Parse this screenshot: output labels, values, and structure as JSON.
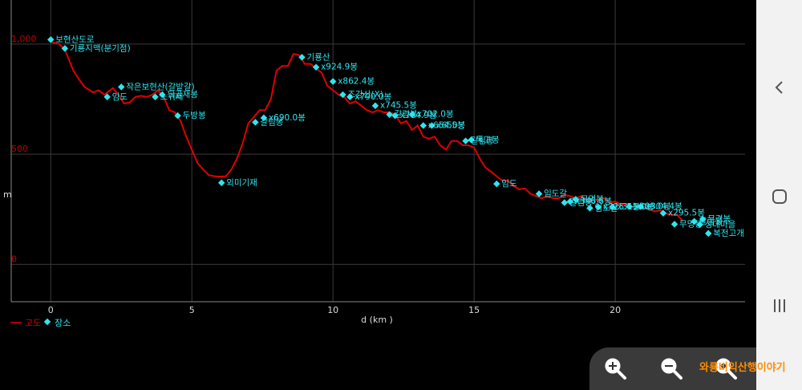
{
  "chart_data": {
    "type": "line",
    "xlabel": "d (km )",
    "ylabel": "m",
    "xlim": [
      -1.4,
      24.6
    ],
    "ylim": [
      -170,
      1200
    ],
    "x_ticks": [
      0,
      5,
      10,
      15,
      20
    ],
    "y_ticks": [
      0,
      500,
      1000
    ],
    "y_tick_labels": [
      "0",
      "500",
      "1,000"
    ],
    "grid": true,
    "legend": {
      "placement": "bottom-left",
      "items": [
        "고도",
        "장소"
      ]
    },
    "colors": {
      "elevation": "#e00000",
      "places": "#2ee6f0",
      "grid": "#3a3a3a"
    },
    "series": [
      {
        "name": "고도",
        "x": [
          0,
          0.3,
          0.5,
          0.8,
          1.0,
          1.2,
          1.5,
          1.7,
          1.9,
          2.0,
          2.2,
          2.4,
          2.6,
          2.8,
          3.0,
          3.2,
          3.4,
          3.6,
          3.8,
          4.0,
          4.2,
          4.4,
          4.6,
          4.8,
          5.0,
          5.2,
          5.4,
          5.6,
          5.8,
          6.0,
          6.2,
          6.4,
          6.6,
          6.8,
          7.0,
          7.2,
          7.4,
          7.6,
          7.8,
          8.0,
          8.2,
          8.4,
          8.6,
          8.8,
          9.0,
          9.2,
          9.4,
          9.6,
          9.8,
          10.0,
          10.2,
          10.4,
          10.6,
          10.8,
          11.0,
          11.2,
          11.4,
          11.6,
          11.8,
          12.0,
          12.2,
          12.4,
          12.6,
          12.8,
          13.0,
          13.2,
          13.4,
          13.6,
          13.8,
          14.0,
          14.2,
          14.4,
          14.6,
          14.8,
          15.0,
          15.2,
          15.4,
          15.6,
          15.8,
          16.0,
          16.2,
          16.4,
          16.6,
          16.8,
          17.0,
          17.2,
          17.4,
          17.6,
          17.8,
          18.0,
          18.2,
          18.4,
          18.6,
          18.8,
          19.0,
          19.2,
          19.4,
          19.6,
          19.8,
          20.0,
          20.2,
          20.4,
          20.6,
          20.8,
          21.0,
          21.2,
          21.4,
          21.6,
          21.8,
          22.0,
          22.2,
          22.4
        ],
        "values": [
          1010,
          1000,
          975,
          880,
          840,
          805,
          780,
          790,
          770,
          780,
          800,
          770,
          730,
          735,
          760,
          765,
          760,
          770,
          790,
          760,
          700,
          690,
          650,
          580,
          520,
          460,
          430,
          405,
          400,
          398,
          400,
          430,
          480,
          550,
          640,
          670,
          700,
          700,
          750,
          880,
          900,
          900,
          955,
          950,
          910,
          910,
          890,
          870,
          810,
          790,
          770,
          760,
          730,
          740,
          720,
          700,
          690,
          700,
          690,
          690,
          680,
          640,
          650,
          610,
          630,
          580,
          570,
          580,
          540,
          520,
          560,
          560,
          540,
          540,
          530,
          480,
          440,
          420,
          400,
          380,
          380,
          355,
          340,
          345,
          320,
          310,
          300,
          310,
          300,
          300,
          315,
          310,
          300,
          310,
          290,
          295,
          290,
          300,
          280,
          285,
          270,
          275,
          260,
          260,
          255,
          250,
          240,
          245,
          230,
          225,
          225,
          195
        ]
      }
    ],
    "places": [
      {
        "x": 0.0,
        "y": 1020,
        "label": "보현산도로"
      },
      {
        "x": 0.5,
        "y": 980,
        "label": "기룡지맥(분기점)"
      },
      {
        "x": 2.0,
        "y": 760,
        "label": "임도"
      },
      {
        "x": 2.5,
        "y": 805,
        "label": "작은보현산(갈밭갈)"
      },
      {
        "x": 3.7,
        "y": 760,
        "label": "노귀재"
      },
      {
        "x": 3.95,
        "y": 770,
        "label": "뒤골재봉"
      },
      {
        "x": 4.5,
        "y": 675,
        "label": "두방봉"
      },
      {
        "x": 6.05,
        "y": 370,
        "label": "외미기재"
      },
      {
        "x": 7.25,
        "y": 645,
        "label": "갈림봉"
      },
      {
        "x": 7.55,
        "y": 665,
        "label": "x690.0봉"
      },
      {
        "x": 8.9,
        "y": 940,
        "label": "기룡산"
      },
      {
        "x": 9.4,
        "y": 895,
        "label": "x924.9봉"
      },
      {
        "x": 10.0,
        "y": 830,
        "label": "x862.4봉"
      },
      {
        "x": 10.35,
        "y": 770,
        "label": "조강산(X)"
      },
      {
        "x": 10.6,
        "y": 760,
        "label": "x790.0봉"
      },
      {
        "x": 11.5,
        "y": 720,
        "label": "x745.5봉"
      },
      {
        "x": 12.0,
        "y": 680,
        "label": "갈림봉"
      },
      {
        "x": 12.2,
        "y": 675,
        "label": "x704.9봉"
      },
      {
        "x": 12.8,
        "y": 680,
        "label": "x702.0봉"
      },
      {
        "x": 13.2,
        "y": 630,
        "label": "x654.5봉"
      },
      {
        "x": 13.5,
        "y": 630,
        "label": "x650봉"
      },
      {
        "x": 14.7,
        "y": 560,
        "label": "갈림봉"
      },
      {
        "x": 14.9,
        "y": 565,
        "label": "독고봉"
      },
      {
        "x": 15.8,
        "y": 365,
        "label": "임도"
      },
      {
        "x": 17.3,
        "y": 320,
        "label": "임도갈"
      },
      {
        "x": 18.2,
        "y": 280,
        "label": "갈림봉"
      },
      {
        "x": 18.4,
        "y": 285,
        "label": "x346.6봉"
      },
      {
        "x": 18.6,
        "y": 295,
        "label": "무명봉"
      },
      {
        "x": 19.1,
        "y": 255,
        "label": "임도갈"
      },
      {
        "x": 19.4,
        "y": 260,
        "label": "x325.5봉"
      },
      {
        "x": 19.9,
        "y": 260,
        "label": "x315.0봉"
      },
      {
        "x": 20.5,
        "y": 262,
        "label": "x308.0봉"
      },
      {
        "x": 20.9,
        "y": 262,
        "label": "x304.4봉"
      },
      {
        "x": 21.7,
        "y": 232,
        "label": "x295.5봉"
      },
      {
        "x": 22.1,
        "y": 182,
        "label": "무명봉"
      },
      {
        "x": 22.8,
        "y": 195,
        "label": "갈림봉"
      },
      {
        "x": 23.0,
        "y": 180,
        "label": "성대마을"
      },
      {
        "x": 23.1,
        "y": 205,
        "label": "무겸봉"
      },
      {
        "x": 23.3,
        "y": 140,
        "label": "복전고개"
      }
    ]
  },
  "navigation": {
    "icons": [
      "back-icon",
      "home-icon",
      "recent-apps-icon"
    ]
  },
  "zoom_controls": {
    "icons": [
      "zoom-in-icon",
      "zoom-out-icon",
      "zoom-reset-icon"
    ]
  },
  "watermark": "와룡비익산행이야기"
}
